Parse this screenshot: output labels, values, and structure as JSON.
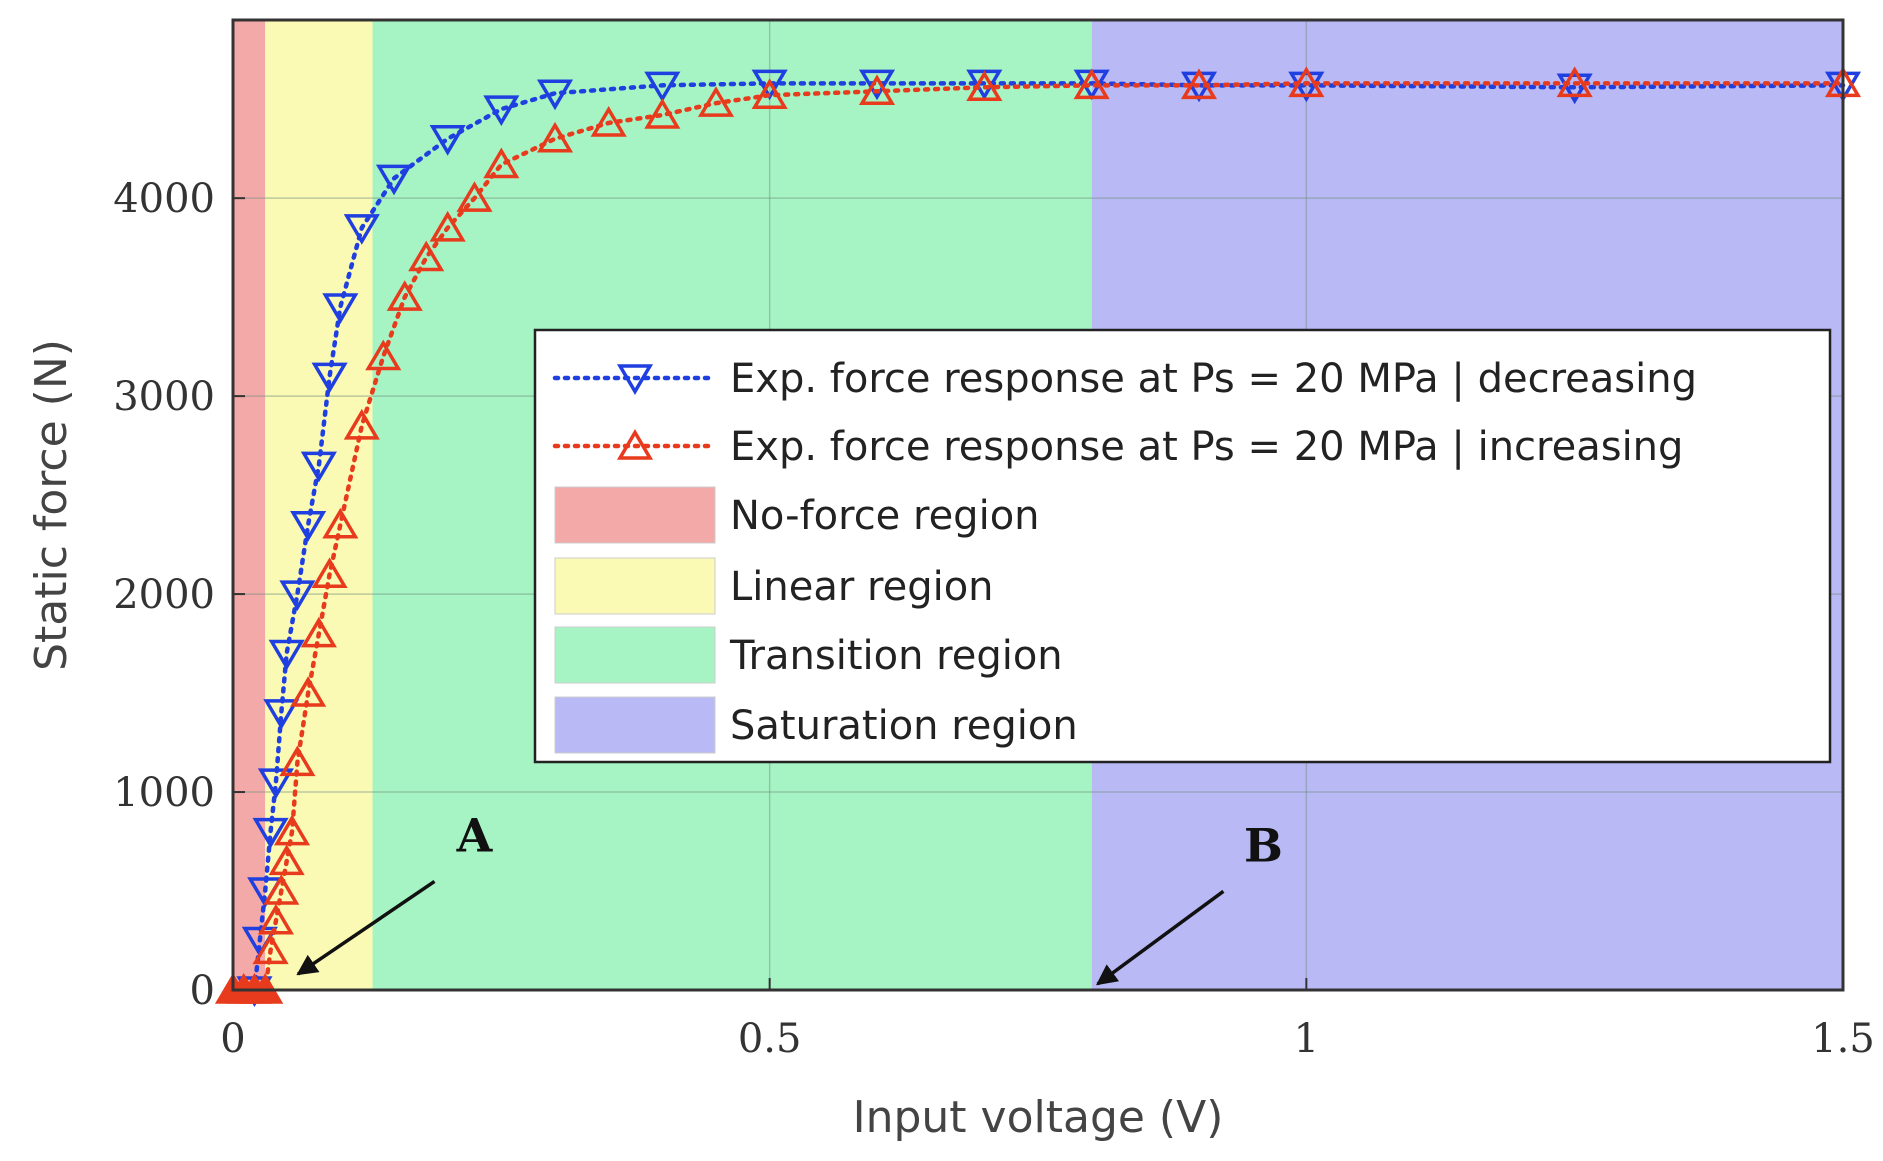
{
  "chart_data": {
    "type": "line",
    "title": "",
    "xlabel": "Input voltage (V)",
    "ylabel": "Static force (N)",
    "xlim": [
      0,
      1.5
    ],
    "ylim": [
      0,
      4900
    ],
    "xticks": [
      0,
      0.5,
      1,
      1.5
    ],
    "xtick_labels": [
      "0",
      "0.5",
      "1",
      "1.5"
    ],
    "yticks": [
      0,
      1000,
      2000,
      3000,
      4000
    ],
    "ytick_labels": [
      "0",
      "1000",
      "2000",
      "3000",
      "4000"
    ],
    "grid": true,
    "regions": [
      {
        "name": "No-force region",
        "x0": 0,
        "x1": 0.03,
        "color": "#f4a9a9"
      },
      {
        "name": "Linear region",
        "x0": 0.03,
        "x1": 0.13,
        "color": "#fafab4"
      },
      {
        "name": "Transition region",
        "x0": 0.13,
        "x1": 0.8,
        "color": "#a6f4c4"
      },
      {
        "name": "Saturation region",
        "x0": 0.8,
        "x1": 1.5,
        "color": "#b9b9f6"
      }
    ],
    "series": [
      {
        "name": "Exp. force response at Ps = 20 MPa | decreasing",
        "color": "#1f3fe0",
        "marker": "triangle-down",
        "x": [
          0.02,
          0.025,
          0.03,
          0.035,
          0.04,
          0.045,
          0.05,
          0.06,
          0.07,
          0.08,
          0.09,
          0.1,
          0.12,
          0.15,
          0.2,
          0.25,
          0.3,
          0.4,
          0.5,
          0.6,
          0.7,
          0.8,
          0.9,
          1.0,
          1.25,
          1.5
        ],
        "y": [
          0,
          250,
          500,
          800,
          1050,
          1400,
          1700,
          2000,
          2350,
          2650,
          3100,
          3450,
          3850,
          4100,
          4300,
          4450,
          4530,
          4570,
          4580,
          4580,
          4580,
          4580,
          4570,
          4570,
          4560,
          4570
        ]
      },
      {
        "name": "Exp. force response at Ps = 20 MPa | increasing",
        "color": "#e83a1c",
        "marker": "triangle-up",
        "x": [
          0.0,
          0.01,
          0.02,
          0.03,
          0.035,
          0.04,
          0.045,
          0.05,
          0.055,
          0.06,
          0.07,
          0.08,
          0.09,
          0.1,
          0.12,
          0.14,
          0.16,
          0.18,
          0.2,
          0.225,
          0.25,
          0.3,
          0.35,
          0.4,
          0.45,
          0.5,
          0.6,
          0.7,
          0.8,
          0.9,
          1.0,
          1.25,
          1.5
        ],
        "y": [
          0,
          0,
          0,
          0,
          200,
          350,
          500,
          650,
          800,
          1150,
          1500,
          1800,
          2100,
          2350,
          2850,
          3200,
          3500,
          3700,
          3850,
          4000,
          4170,
          4300,
          4380,
          4420,
          4480,
          4520,
          4540,
          4560,
          4570,
          4570,
          4580,
          4580,
          4580
        ]
      }
    ],
    "annotations": [
      {
        "text": "A",
        "arrow_to": [
          0.055,
          50
        ],
        "text_at": [
          0.225,
          700
        ]
      },
      {
        "text": "B",
        "arrow_to": [
          0.8,
          0
        ],
        "text_at": [
          0.96,
          650
        ]
      }
    ],
    "legend": {
      "position": "center-right"
    }
  }
}
